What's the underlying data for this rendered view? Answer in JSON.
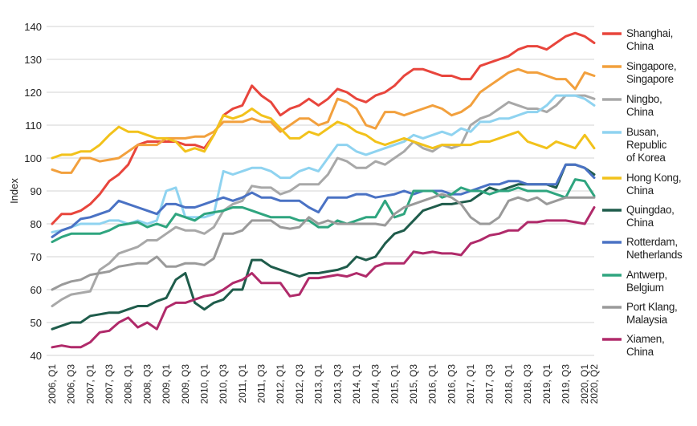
{
  "chart_data": {
    "type": "line",
    "title": "",
    "xlabel": "",
    "ylabel": "Index",
    "ylim": [
      40,
      140
    ],
    "yticks": [
      40,
      50,
      60,
      70,
      80,
      90,
      100,
      110,
      120,
      130,
      140
    ],
    "grid": "horizontal",
    "legend_position": "right",
    "x": [
      "2006, Q1",
      "2006, Q2",
      "2006, Q3",
      "2006, Q4",
      "2007, Q1",
      "2007, Q2",
      "2007, Q3",
      "2007, Q4",
      "2008, Q1",
      "2008, Q2",
      "2008, Q3",
      "2008, Q4",
      "2009, Q1",
      "2009, Q2",
      "2009, Q3",
      "2009, Q4",
      "2010, Q1",
      "2010, Q2",
      "2010, Q3",
      "2010, Q4",
      "2011, Q1",
      "2011, Q2",
      "2011, Q3",
      "2011, Q4",
      "2012, Q1",
      "2012, Q2",
      "2012, Q3",
      "2012, Q4",
      "2013, Q1",
      "2013, Q2",
      "2013, Q3",
      "2013, Q4",
      "2014, Q1",
      "2014, Q2",
      "2014, Q3",
      "2014, Q4",
      "2015, Q1",
      "2015, Q2",
      "2015, Q3",
      "2015, Q4",
      "2016, Q1",
      "2016, Q2",
      "2016, Q3",
      "2016, Q4",
      "2017, Q1",
      "2017, Q2",
      "2017, Q3",
      "2017, Q4",
      "2018, Q1",
      "2018, Q2",
      "2018, Q3",
      "2018, Q4",
      "2019, Q1",
      "2019, Q2",
      "2019, Q3",
      "2019, Q4",
      "2020, Q1",
      "2020, Q2"
    ],
    "xtick_labels": [
      "2006, Q1",
      "2006, Q3",
      "2007, Q1",
      "2007, Q3",
      "2008, Q1",
      "2008, Q3",
      "2009, Q1",
      "2009, Q3",
      "2010, Q1",
      "2010, Q3",
      "2011, Q1",
      "2011, Q3",
      "2012, Q1",
      "2012, Q3",
      "2013, Q1",
      "2013, Q3",
      "2014, Q1",
      "2014, Q3",
      "2015, Q1",
      "2015, Q3",
      "2016, Q1",
      "2016, Q3",
      "2017, Q1",
      "2017, Q3",
      "2018, Q1",
      "2018, Q3",
      "2019, Q1",
      "2019, Q3",
      "2020, Q1",
      "2020, Q2"
    ],
    "series": [
      {
        "name": "Shanghai, China",
        "lines": [
          "Shanghai,",
          "China"
        ],
        "color": "#e8453c",
        "values": [
          80,
          83,
          83,
          84,
          86,
          89,
          93,
          95,
          98,
          104,
          105,
          105,
          105,
          105,
          104,
          104,
          103,
          107,
          113,
          115,
          116,
          122,
          119,
          117,
          113,
          115,
          116,
          118,
          116,
          118,
          121,
          120,
          118,
          117,
          119,
          120,
          122,
          125,
          127,
          127,
          126,
          125,
          125,
          124,
          124,
          128,
          129,
          130,
          131,
          133,
          134,
          134,
          133,
          135,
          137,
          138,
          137,
          135
        ]
      },
      {
        "name": "Singapore, Singapore",
        "lines": [
          "Singapore,",
          "Singapore"
        ],
        "color": "#f2a03d",
        "values": [
          96.5,
          95.5,
          95.5,
          100,
          100,
          99,
          99.5,
          100,
          102,
          104,
          104,
          104,
          106,
          106,
          106,
          106.5,
          106.5,
          108,
          111,
          111,
          111,
          112,
          111,
          111,
          108,
          110,
          112,
          112,
          110,
          111,
          118,
          117,
          115,
          110,
          109,
          114,
          114,
          113,
          114,
          115,
          116,
          115,
          113,
          114,
          116,
          120,
          122,
          124,
          126,
          127,
          126,
          126,
          125,
          124,
          124,
          121,
          126,
          125
        ]
      },
      {
        "name": "Ningbo, China",
        "lines": [
          "Ningbo,",
          "China"
        ],
        "color": "#a8a8a8",
        "values": [
          55,
          57,
          58.5,
          59,
          59.5,
          66,
          68,
          71,
          72,
          73,
          75,
          75,
          77,
          79,
          78,
          78,
          77,
          79,
          84,
          86,
          87,
          91.5,
          91,
          91,
          89,
          90,
          92,
          92,
          92,
          95,
          100,
          99,
          97,
          97,
          99,
          98,
          100,
          102,
          105,
          103,
          102,
          104,
          103,
          104,
          110,
          112,
          113,
          115,
          117,
          116,
          115,
          115,
          114,
          116,
          119,
          119,
          119,
          118
        ]
      },
      {
        "name": "Busan, Republic of Korea",
        "lines": [
          "Busan,",
          "Republic",
          "of Korea"
        ],
        "color": "#8fd3f0",
        "values": [
          77.5,
          78,
          79,
          80,
          80,
          80,
          81,
          81,
          80,
          81,
          80,
          81,
          90,
          91,
          82,
          82,
          82,
          83,
          96,
          95,
          96,
          97,
          97,
          96,
          94,
          94,
          96,
          97,
          96,
          100,
          104,
          104,
          102,
          101,
          102,
          103,
          104,
          105,
          107,
          106,
          107,
          108,
          107,
          109,
          108,
          111,
          111,
          112,
          112,
          113,
          114,
          114,
          116,
          119,
          119,
          119,
          118,
          116
        ]
      },
      {
        "name": "Hong Kong, China",
        "lines": [
          "Hong Kong,",
          "China"
        ],
        "color": "#f2c21b",
        "values": [
          100,
          101,
          101,
          102,
          102,
          104,
          107,
          109.5,
          108,
          108,
          107,
          106,
          106,
          105,
          102,
          103,
          102,
          107,
          113,
          112,
          113,
          115,
          113,
          112,
          109,
          106,
          106,
          108,
          107,
          109,
          111,
          110,
          108,
          107,
          105,
          104,
          105,
          106,
          105,
          104,
          103,
          104,
          104,
          104,
          104,
          105,
          105,
          106,
          107,
          108,
          105,
          104,
          103,
          105,
          104,
          103,
          107,
          103
        ]
      },
      {
        "name": "Quingdao, China",
        "lines": [
          "Quingdao,",
          "China"
        ],
        "color": "#1f5c4b",
        "values": [
          48,
          49,
          50,
          50,
          52,
          52.5,
          53,
          53,
          54,
          55,
          55,
          56.5,
          57.5,
          63,
          65,
          56,
          54,
          56,
          57,
          60,
          60,
          69,
          69,
          67,
          66,
          65,
          64,
          65,
          65,
          65.5,
          66,
          67,
          70,
          69,
          70,
          74,
          77,
          78,
          81,
          84,
          85,
          86,
          86,
          86.5,
          87,
          89,
          91,
          90,
          91,
          92,
          92,
          92,
          92,
          91,
          98,
          98,
          97,
          95
        ]
      },
      {
        "name": "Rotterdam, Netherlands",
        "lines": [
          "Rotterdam,",
          "Netherlands"
        ],
        "color": "#4a72c4",
        "values": [
          76,
          78,
          79,
          81.5,
          82,
          83,
          84,
          87,
          86,
          85,
          84,
          83,
          86,
          86,
          85,
          85,
          86,
          87,
          88,
          87,
          88,
          89.5,
          88,
          88,
          87,
          87,
          87,
          85,
          83.5,
          88,
          88,
          88,
          89,
          89,
          88,
          88.5,
          89,
          90,
          89,
          90,
          90,
          90,
          89,
          89,
          90,
          91,
          92,
          92,
          93,
          93,
          92,
          92,
          92,
          92,
          98,
          98,
          97,
          94
        ]
      },
      {
        "name": "Antwerp, Belgium",
        "lines": [
          "Antwerp,",
          "Belgium"
        ],
        "color": "#2fa57f",
        "values": [
          74.5,
          76,
          77,
          77,
          77,
          77,
          78,
          79.5,
          80,
          80.5,
          79,
          80,
          79,
          83,
          82,
          81,
          83,
          83.5,
          84,
          85,
          85,
          84,
          83,
          82,
          82,
          82,
          81,
          81,
          79,
          79,
          81,
          80,
          81,
          82,
          82,
          87,
          82,
          83,
          90,
          90,
          90,
          88,
          89,
          91,
          90,
          90,
          89,
          90,
          90,
          91,
          90,
          90,
          90,
          89,
          88,
          93.5,
          93,
          88.5
        ]
      },
      {
        "name": "Port Klang, Malaysia",
        "lines": [
          "Port Klang,",
          "Malaysia"
        ],
        "color": "#9a9a9a",
        "values": [
          60,
          61.5,
          62.5,
          63,
          64.5,
          65,
          65.5,
          67,
          67.5,
          68,
          68,
          70,
          67,
          67,
          68,
          68,
          67.5,
          69.5,
          77,
          77,
          78,
          81,
          81,
          81,
          79,
          78.5,
          79,
          82,
          80,
          81,
          80,
          80,
          80,
          80,
          80,
          79.5,
          83,
          85,
          86,
          87,
          88,
          89,
          88,
          86,
          82,
          80,
          80,
          82,
          87,
          88,
          87,
          88,
          86,
          87,
          88,
          88,
          88,
          88
        ]
      },
      {
        "name": "Xiamen, China",
        "lines": [
          "Xiamen,",
          "China"
        ],
        "color": "#b02a6a",
        "values": [
          42.5,
          43,
          42.5,
          42.5,
          44,
          47,
          47.5,
          50,
          51.5,
          48.5,
          50,
          48,
          54.5,
          56,
          56,
          57,
          58,
          58.5,
          60,
          62,
          63,
          65,
          62,
          62,
          62,
          58,
          58.5,
          63.5,
          63.5,
          64,
          64.5,
          64,
          65,
          64,
          67,
          68,
          68,
          68,
          71.5,
          71,
          71.5,
          71,
          71,
          70.5,
          74,
          75,
          76.5,
          77,
          78,
          78,
          80.5,
          80.5,
          81,
          81,
          81,
          80.5,
          80,
          85
        ]
      }
    ]
  }
}
